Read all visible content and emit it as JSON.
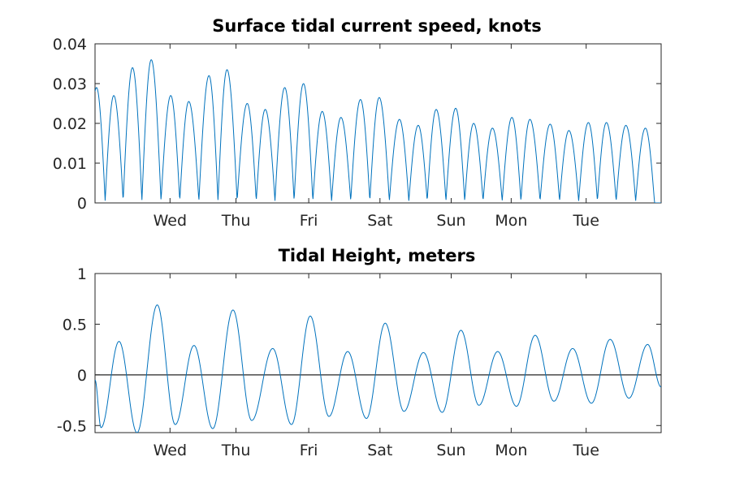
{
  "chart_data": [
    {
      "type": "line",
      "title": "Surface tidal current speed, knots",
      "xlabel": "",
      "ylabel": "",
      "x_ticks": [
        "Wed",
        "Thu",
        "Fri",
        "Sat",
        "Sun",
        "Mon",
        "Tue"
      ],
      "xlim_days": [
        0,
        7.55
      ],
      "ylim": [
        0,
        0.04
      ],
      "y_ticks": [
        "0",
        "0.01",
        "0.02",
        "0.03",
        "0.04"
      ],
      "grid": false,
      "line_color": "#0072BD",
      "peak_days": [
        0.02,
        0.25,
        0.5,
        0.75,
        1.01,
        1.25,
        1.52,
        1.76,
        2.03,
        2.27,
        2.53,
        2.78,
        3.03,
        3.28,
        3.54,
        3.79,
        4.06,
        4.31,
        4.55,
        4.81,
        5.05,
        5.3,
        5.56,
        5.8,
        6.07,
        6.32,
        6.58,
        6.82,
        7.08,
        7.34
      ],
      "peak_values": [
        0.029,
        0.027,
        0.034,
        0.036,
        0.027,
        0.0255,
        0.032,
        0.0335,
        0.025,
        0.0235,
        0.029,
        0.03,
        0.023,
        0.0215,
        0.026,
        0.0265,
        0.021,
        0.0195,
        0.0235,
        0.0238,
        0.02,
        0.0188,
        0.0215,
        0.021,
        0.0198,
        0.0182,
        0.0202,
        0.0202,
        0.0195,
        0.0188
      ]
    },
    {
      "type": "line",
      "title": "Tidal Height, meters",
      "xlabel": "",
      "ylabel": "",
      "x_ticks": [
        "Wed",
        "Thu",
        "Fri",
        "Sat",
        "Sun",
        "Mon",
        "Tue"
      ],
      "xlim_days": [
        0,
        7.55
      ],
      "ylim": [
        -0.57,
        1
      ],
      "y_ticks": [
        "-0.5",
        "0",
        "0.5",
        "1"
      ],
      "grid": false,
      "line_color": "#0072BD",
      "zero_line_color": "#262626",
      "extrema_days": [
        0.0,
        0.08,
        0.32,
        0.56,
        0.83,
        1.07,
        1.32,
        1.57,
        1.84,
        2.09,
        2.37,
        2.62,
        2.87,
        3.12,
        3.37,
        3.62,
        3.87,
        4.12,
        4.38,
        4.63,
        4.88,
        5.12,
        5.37,
        5.62,
        5.87,
        6.12,
        6.37,
        6.62,
        6.87,
        7.12,
        7.37,
        7.55
      ],
      "extrema_values": [
        -0.05,
        -0.52,
        0.33,
        -0.57,
        0.69,
        -0.49,
        0.29,
        -0.53,
        0.64,
        -0.45,
        0.26,
        -0.49,
        0.58,
        -0.41,
        0.23,
        -0.43,
        0.51,
        -0.36,
        0.22,
        -0.37,
        0.44,
        -0.3,
        0.23,
        -0.31,
        0.39,
        -0.26,
        0.26,
        -0.28,
        0.35,
        -0.23,
        0.3,
        -0.12
      ]
    }
  ]
}
